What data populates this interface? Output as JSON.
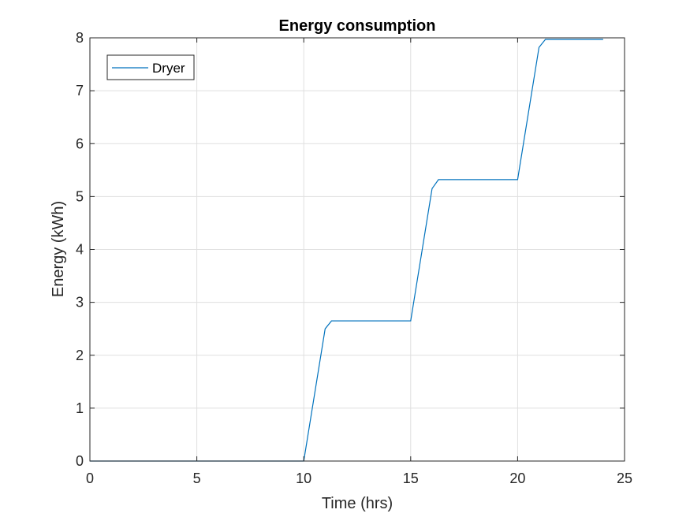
{
  "chart_data": {
    "type": "line",
    "title": "Energy consumption",
    "xlabel": "Time (hrs)",
    "ylabel": "Energy  (kWh)",
    "xlim": [
      0,
      25
    ],
    "ylim": [
      0,
      8
    ],
    "xticks": [
      0,
      5,
      10,
      15,
      20,
      25
    ],
    "yticks": [
      0,
      1,
      2,
      3,
      4,
      5,
      6,
      7,
      8
    ],
    "grid": true,
    "legend_position": "top-left",
    "series": [
      {
        "name": "Dryer",
        "color": "#0072BD",
        "x": [
          0,
          10,
          11,
          11.3,
          15,
          16,
          16.3,
          20,
          21,
          21.3,
          24
        ],
        "y": [
          0,
          0,
          2.5,
          2.65,
          2.65,
          5.15,
          5.32,
          5.32,
          7.82,
          7.97,
          7.97
        ]
      }
    ]
  }
}
